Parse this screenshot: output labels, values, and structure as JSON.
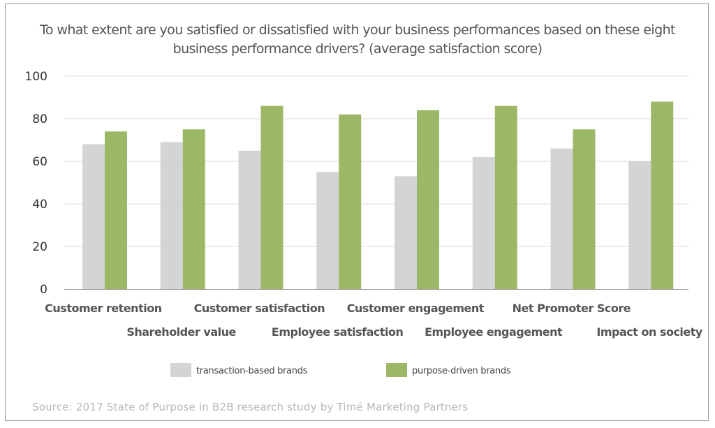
{
  "chart_data": {
    "type": "bar",
    "title": "To what extent are you satisfied or dissatisfied with your business performances based on these eight business performance drivers? (average satisfaction score)",
    "categories": [
      "Customer retention",
      "Shareholder value",
      "Customer satisfaction",
      "Employee satisfaction",
      "Customer engagement",
      "Employee engagement",
      "Net Promoter Score",
      "Impact on society"
    ],
    "series": [
      {
        "name": "transaction-based brands",
        "color": "#d3d4d6",
        "values": [
          68,
          69,
          65,
          55,
          53,
          62,
          66,
          60
        ]
      },
      {
        "name": "purpose-driven brands",
        "color": "#9cb867",
        "values": [
          74,
          75,
          86,
          82,
          84,
          86,
          75,
          88
        ]
      }
    ],
    "ylim": [
      0,
      100
    ],
    "yticks": [
      0,
      20,
      40,
      60,
      80,
      100
    ],
    "grid": true,
    "legend_position": "bottom"
  },
  "source": "Source: 2017 State of Purpose in B2B research study by Timé Marketing Partners"
}
